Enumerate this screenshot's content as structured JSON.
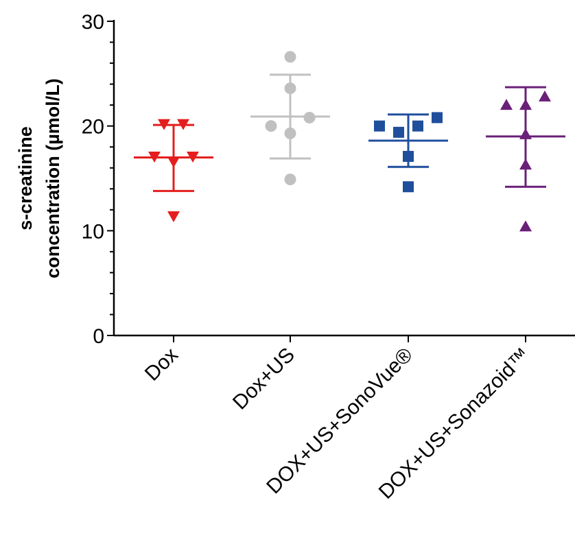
{
  "chart_data": {
    "type": "scatter",
    "ylabel_lines": [
      "s-creatinine",
      "concentration (µmol/L)"
    ],
    "xlabel": "",
    "ylim": [
      0,
      30
    ],
    "y_ticks": [
      0,
      10,
      20,
      30
    ],
    "categories": [
      "Dox",
      "Dox+US",
      "DOX+US+SonoVue®",
      "DOX+US+Sonazoid™"
    ],
    "grid": false,
    "series": [
      {
        "category": "Dox",
        "marker": "triangle-down",
        "color": "#e41e1e",
        "points": [
          20.2,
          20.2,
          17.1,
          16.6,
          17.1,
          11.4
        ],
        "mean": 17.0,
        "sd_upper": 20.1,
        "sd_lower": 13.8
      },
      {
        "category": "Dox+US",
        "marker": "circle",
        "color": "#c0c0c0",
        "points": [
          26.6,
          23.6,
          20.0,
          19.3,
          20.8,
          14.9
        ],
        "mean": 20.9,
        "sd_upper": 24.9,
        "sd_lower": 16.9
      },
      {
        "category": "DOX+US+SonoVue®",
        "marker": "square",
        "color": "#1f4e9c",
        "points": [
          20.0,
          19.4,
          20.0,
          20.8,
          17.1,
          14.2
        ],
        "mean": 18.6,
        "sd_upper": 21.1,
        "sd_lower": 16.1
      },
      {
        "category": "DOX+US+Sonazoid™",
        "marker": "triangle-up",
        "color": "#6a1f78",
        "points": [
          22.0,
          22.0,
          22.8,
          19.2,
          16.3,
          10.4
        ],
        "mean": 19.0,
        "sd_upper": 23.7,
        "sd_lower": 14.2
      }
    ]
  }
}
